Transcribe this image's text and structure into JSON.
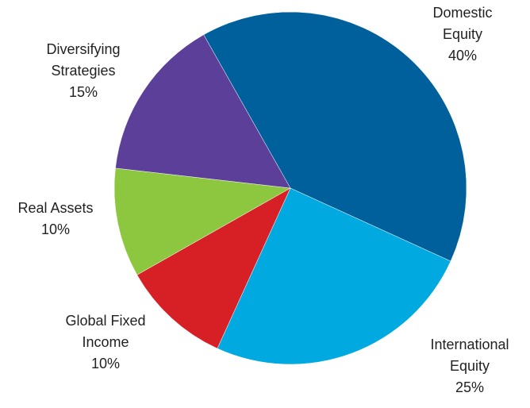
{
  "chart_data": {
    "type": "pie",
    "categories": [
      "Domestic\nEquity",
      "International\nEquity",
      "Global Fixed\nIncome",
      "Real Assets",
      "Diversifying\nStrategies"
    ],
    "values": [
      40,
      25,
      10,
      10,
      15
    ],
    "value_labels": [
      "40%",
      "25%",
      "10%",
      "10%",
      "15%"
    ],
    "colors": [
      "#00609c",
      "#00a9e0",
      "#d71f26",
      "#8dc63f",
      "#5b3f99"
    ]
  }
}
